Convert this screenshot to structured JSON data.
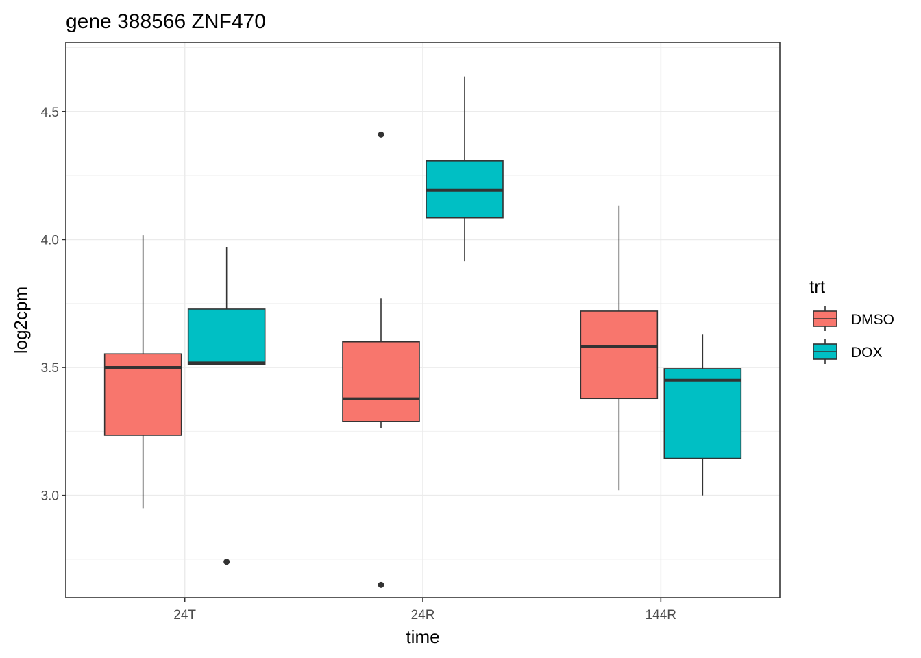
{
  "chart_data": {
    "type": "boxplot",
    "title": "gene 388566 ZNF470",
    "xlabel": "time",
    "ylabel": "log2cpm",
    "categories": [
      "24T",
      "24R",
      "144R"
    ],
    "ylim": [
      2.6,
      4.77
    ],
    "yticks": [
      3.0,
      3.5,
      4.0,
      4.5
    ],
    "ytick_labels": [
      "3.0",
      "3.5",
      "4.0",
      "4.5"
    ],
    "grid": true,
    "legend": {
      "title": "trt",
      "position": "right",
      "entries": [
        "DMSO",
        "DOX"
      ]
    },
    "series": [
      {
        "name": "DMSO",
        "color": "#F8766D",
        "boxes": [
          {
            "category": "24T",
            "whisker_low": 2.95,
            "q1": 3.235,
            "median": 3.5,
            "q3": 3.553,
            "whisker_high": 4.017,
            "outliers": []
          },
          {
            "category": "24R",
            "whisker_low": 3.262,
            "q1": 3.289,
            "median": 3.378,
            "q3": 3.6,
            "whisker_high": 3.77,
            "outliers": [
              4.41,
              2.65
            ]
          },
          {
            "category": "144R",
            "whisker_low": 3.02,
            "q1": 3.379,
            "median": 3.582,
            "q3": 3.72,
            "whisker_high": 4.133,
            "outliers": []
          }
        ]
      },
      {
        "name": "DOX",
        "color": "#00BFC4",
        "boxes": [
          {
            "category": "24T",
            "whisker_low": 3.513,
            "q1": 3.513,
            "median": 3.518,
            "q3": 3.728,
            "whisker_high": 3.97,
            "outliers": [
              2.74
            ]
          },
          {
            "category": "24R",
            "whisker_low": 3.915,
            "q1": 4.085,
            "median": 4.192,
            "q3": 4.307,
            "whisker_high": 4.637,
            "outliers": []
          },
          {
            "category": "144R",
            "whisker_low": 3.0,
            "q1": 3.145,
            "median": 3.45,
            "q3": 3.495,
            "whisker_high": 3.628,
            "outliers": []
          }
        ]
      }
    ]
  }
}
